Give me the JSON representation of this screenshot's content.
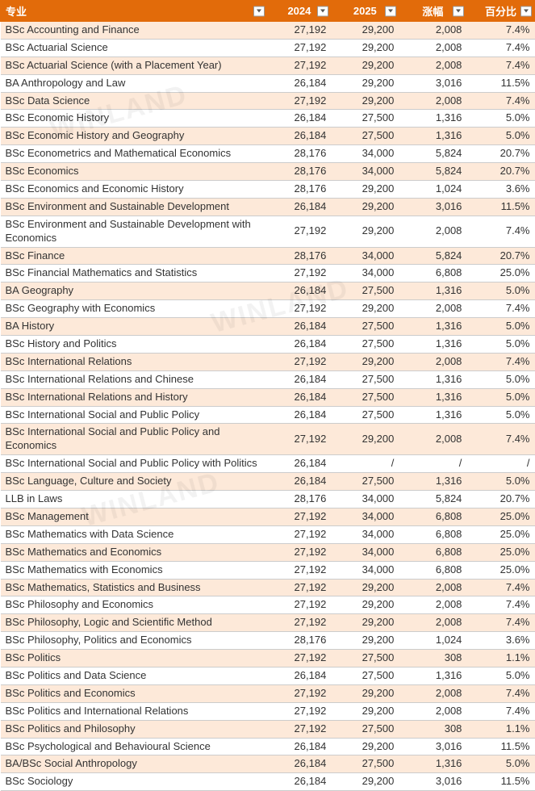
{
  "header": {
    "major": "专业",
    "y2024": "2024",
    "y2025": "2025",
    "diff": "涨幅",
    "pct": "百分比"
  },
  "colors": {
    "header_bg": "#e26b0a",
    "header_fg": "#ffffff",
    "row_odd_bg": "#fde9d9",
    "row_even_bg": "#ffffff",
    "border": "#cccccc"
  },
  "rows": [
    {
      "major": "BSc Accounting and Finance",
      "y2024": "27,192",
      "y2025": "29,200",
      "diff": "2,008",
      "pct": "7.4%"
    },
    {
      "major": "BSc Actuarial Science",
      "y2024": "27,192",
      "y2025": "29,200",
      "diff": "2,008",
      "pct": "7.4%"
    },
    {
      "major": "BSc Actuarial Science (with a Placement Year)",
      "y2024": "27,192",
      "y2025": "29,200",
      "diff": "2,008",
      "pct": "7.4%"
    },
    {
      "major": "BA Anthropology and Law",
      "y2024": "26,184",
      "y2025": "29,200",
      "diff": "3,016",
      "pct": "11.5%"
    },
    {
      "major": "BSc Data Science",
      "y2024": "27,192",
      "y2025": "29,200",
      "diff": "2,008",
      "pct": "7.4%"
    },
    {
      "major": "BSc Economic History",
      "y2024": "26,184",
      "y2025": "27,500",
      "diff": "1,316",
      "pct": "5.0%"
    },
    {
      "major": "BSc Economic History and Geography",
      "y2024": "26,184",
      "y2025": "27,500",
      "diff": "1,316",
      "pct": "5.0%"
    },
    {
      "major": "BSc Econometrics and Mathematical Economics",
      "y2024": "28,176",
      "y2025": "34,000",
      "diff": "5,824",
      "pct": "20.7%"
    },
    {
      "major": "BSc Economics",
      "y2024": "28,176",
      "y2025": "34,000",
      "diff": "5,824",
      "pct": "20.7%"
    },
    {
      "major": "BSc Economics and Economic History",
      "y2024": "28,176",
      "y2025": "29,200",
      "diff": "1,024",
      "pct": "3.6%"
    },
    {
      "major": "BSc Environment and Sustainable Development",
      "y2024": "26,184",
      "y2025": "29,200",
      "diff": "3,016",
      "pct": "11.5%"
    },
    {
      "major": "BSc Environment and Sustainable Development with Economics",
      "y2024": "27,192",
      "y2025": "29,200",
      "diff": "2,008",
      "pct": "7.4%"
    },
    {
      "major": "BSc Finance",
      "y2024": "28,176",
      "y2025": "34,000",
      "diff": "5,824",
      "pct": "20.7%"
    },
    {
      "major": "BSc Financial Mathematics and Statistics",
      "y2024": "27,192",
      "y2025": "34,000",
      "diff": "6,808",
      "pct": "25.0%"
    },
    {
      "major": "BA Geography",
      "y2024": "26,184",
      "y2025": "27,500",
      "diff": "1,316",
      "pct": "5.0%"
    },
    {
      "major": "BSc Geography with Economics",
      "y2024": "27,192",
      "y2025": "29,200",
      "diff": "2,008",
      "pct": "7.4%"
    },
    {
      "major": "BA History",
      "y2024": "26,184",
      "y2025": "27,500",
      "diff": "1,316",
      "pct": "5.0%"
    },
    {
      "major": "BSc History and Politics",
      "y2024": "26,184",
      "y2025": "27,500",
      "diff": "1,316",
      "pct": "5.0%"
    },
    {
      "major": "BSc International Relations",
      "y2024": "27,192",
      "y2025": "29,200",
      "diff": "2,008",
      "pct": "7.4%"
    },
    {
      "major": "BSc International Relations and Chinese",
      "y2024": "26,184",
      "y2025": "27,500",
      "diff": "1,316",
      "pct": "5.0%"
    },
    {
      "major": "BSc International Relations and History",
      "y2024": "26,184",
      "y2025": "27,500",
      "diff": "1,316",
      "pct": "5.0%"
    },
    {
      "major": "BSc International Social and Public Policy",
      "y2024": "26,184",
      "y2025": "27,500",
      "diff": "1,316",
      "pct": "5.0%"
    },
    {
      "major": "BSc International Social and Public Policy and Economics",
      "y2024": "27,192",
      "y2025": "29,200",
      "diff": "2,008",
      "pct": "7.4%"
    },
    {
      "major": "BSc International Social and Public Policy with Politics",
      "y2024": "26,184",
      "y2025": "/",
      "diff": "/",
      "pct": "/"
    },
    {
      "major": "BSc Language, Culture and Society",
      "y2024": "26,184",
      "y2025": "27,500",
      "diff": "1,316",
      "pct": "5.0%"
    },
    {
      "major": "LLB in Laws",
      "y2024": "28,176",
      "y2025": "34,000",
      "diff": "5,824",
      "pct": "20.7%"
    },
    {
      "major": "BSc Management",
      "y2024": "27,192",
      "y2025": "34,000",
      "diff": "6,808",
      "pct": "25.0%"
    },
    {
      "major": "BSc Mathematics with Data Science",
      "y2024": "27,192",
      "y2025": "34,000",
      "diff": "6,808",
      "pct": "25.0%"
    },
    {
      "major": "BSc Mathematics and Economics",
      "y2024": "27,192",
      "y2025": "34,000",
      "diff": "6,808",
      "pct": "25.0%"
    },
    {
      "major": "BSc Mathematics with Economics",
      "y2024": "27,192",
      "y2025": "34,000",
      "diff": "6,808",
      "pct": "25.0%"
    },
    {
      "major": "BSc Mathematics, Statistics and Business",
      "y2024": "27,192",
      "y2025": "29,200",
      "diff": "2,008",
      "pct": "7.4%"
    },
    {
      "major": "BSc Philosophy and Economics",
      "y2024": "27,192",
      "y2025": "29,200",
      "diff": "2,008",
      "pct": "7.4%"
    },
    {
      "major": "BSc Philosophy, Logic and Scientific Method",
      "y2024": "27,192",
      "y2025": "29,200",
      "diff": "2,008",
      "pct": "7.4%"
    },
    {
      "major": "BSc Philosophy, Politics and Economics",
      "y2024": "28,176",
      "y2025": "29,200",
      "diff": "1,024",
      "pct": "3.6%"
    },
    {
      "major": "BSc Politics",
      "y2024": "27,192",
      "y2025": "27,500",
      "diff": "308",
      "pct": "1.1%"
    },
    {
      "major": "BSc Politics and Data Science",
      "y2024": "26,184",
      "y2025": "27,500",
      "diff": "1,316",
      "pct": "5.0%"
    },
    {
      "major": "BSc Politics and Economics",
      "y2024": "27,192",
      "y2025": "29,200",
      "diff": "2,008",
      "pct": "7.4%"
    },
    {
      "major": "BSc Politics and International Relations",
      "y2024": "27,192",
      "y2025": "29,200",
      "diff": "2,008",
      "pct": "7.4%"
    },
    {
      "major": "BSc Politics and Philosophy",
      "y2024": "27,192",
      "y2025": "27,500",
      "diff": "308",
      "pct": "1.1%"
    },
    {
      "major": "BSc Psychological and Behavioural Science",
      "y2024": "26,184",
      "y2025": "29,200",
      "diff": "3,016",
      "pct": "11.5%"
    },
    {
      "major": "BA/BSc Social Anthropology",
      "y2024": "26,184",
      "y2025": "27,500",
      "diff": "1,316",
      "pct": "5.0%"
    },
    {
      "major": "BSc Sociology",
      "y2024": "26,184",
      "y2025": "29,200",
      "diff": "3,016",
      "pct": "11.5%"
    }
  ]
}
